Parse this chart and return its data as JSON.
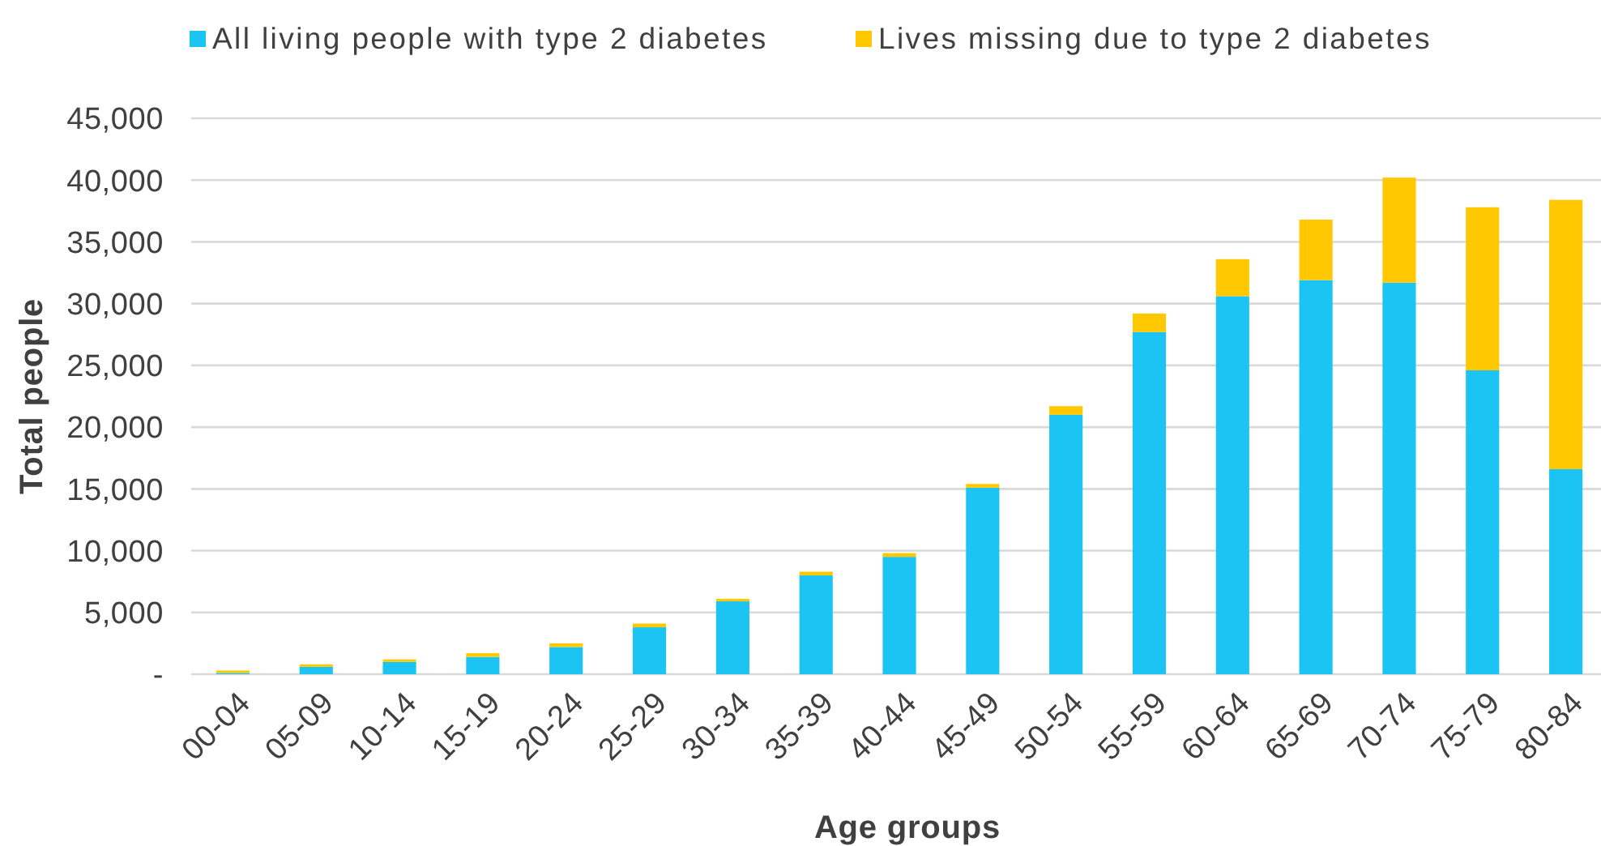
{
  "chart_data": {
    "type": "bar",
    "stacked": true,
    "xlabel": "Age groups",
    "ylabel": "Total people",
    "categories": [
      "00-04",
      "05-09",
      "10-14",
      "15-19",
      "20-24",
      "25-29",
      "30-34",
      "35-39",
      "40-44",
      "45-49",
      "50-54",
      "55-59",
      "60-64",
      "65-69",
      "70-74",
      "75-79",
      "80-84"
    ],
    "series": [
      {
        "name": "All living people with type 2 diabetes",
        "color": "#1bc4f3",
        "values": [
          100,
          600,
          1000,
          1400,
          2200,
          3800,
          5900,
          8000,
          9500,
          15100,
          21000,
          27700,
          30600,
          31900,
          31700,
          24600,
          16600
        ]
      },
      {
        "name": "Lives missing due to type 2 diabetes",
        "color": "#ffc800",
        "values": [
          200,
          200,
          200,
          300,
          300,
          300,
          200,
          300,
          300,
          300,
          700,
          1500,
          3000,
          4900,
          8500,
          13200,
          21800
        ]
      }
    ],
    "ylim": [
      0,
      45000
    ],
    "yticks": [
      {
        "value": 0,
        "label": "-"
      },
      {
        "value": 5000,
        "label": "5,000"
      },
      {
        "value": 10000,
        "label": "10,000"
      },
      {
        "value": 15000,
        "label": "15,000"
      },
      {
        "value": 20000,
        "label": "20,000"
      },
      {
        "value": 25000,
        "label": "25,000"
      },
      {
        "value": 30000,
        "label": "30,000"
      },
      {
        "value": 35000,
        "label": "35,000"
      },
      {
        "value": 40000,
        "label": "40,000"
      },
      {
        "value": 45000,
        "label": "45,000"
      }
    ],
    "grid": "y",
    "legend": "top"
  }
}
